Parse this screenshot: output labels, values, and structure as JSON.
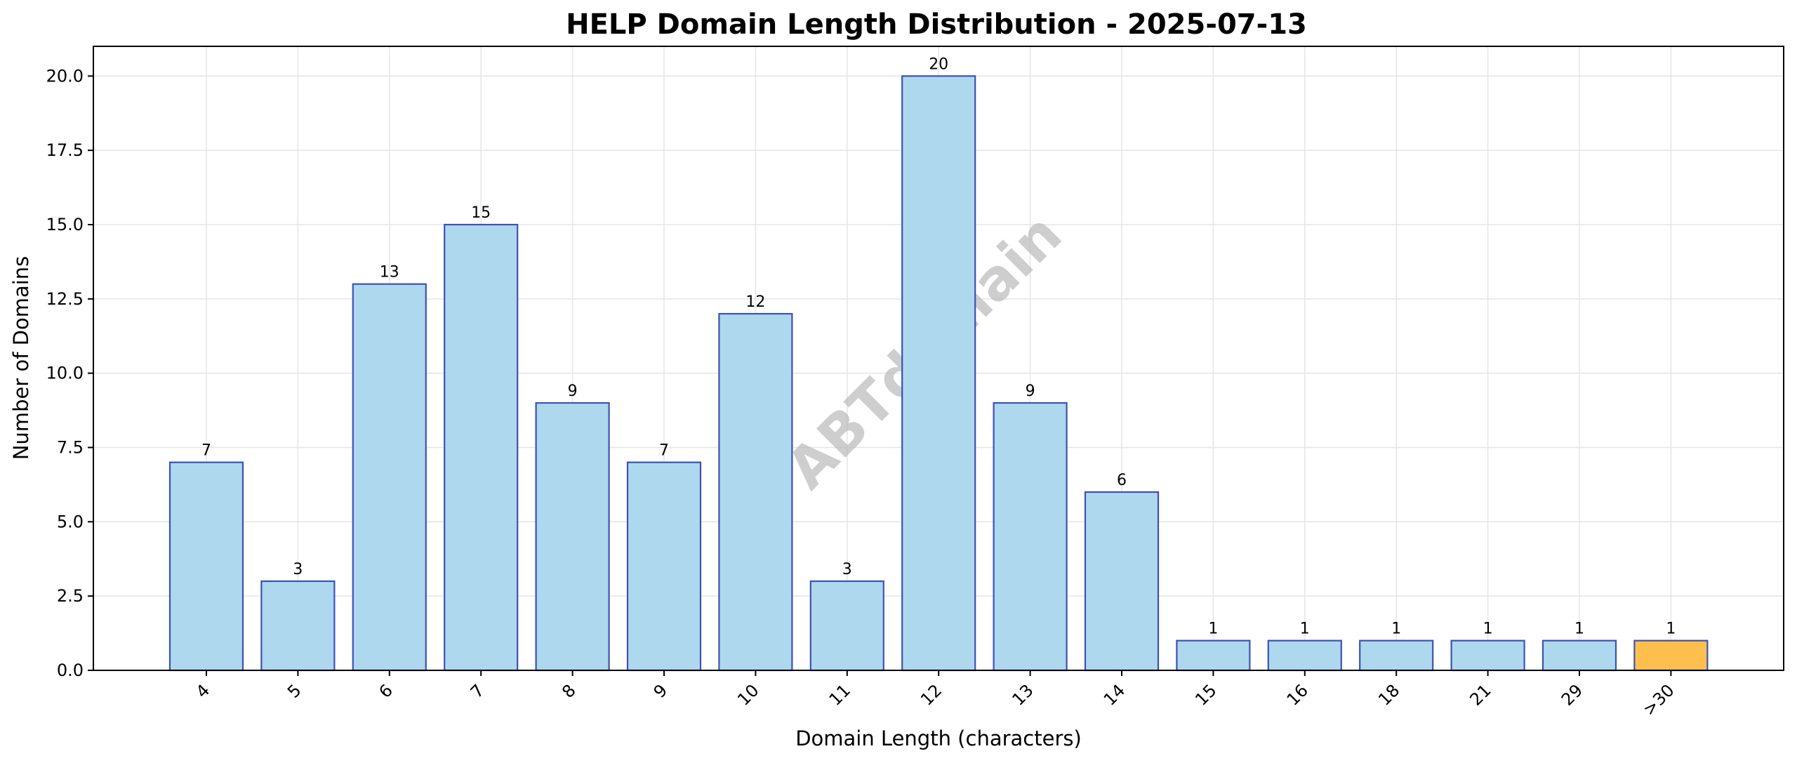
{
  "chart_data": {
    "type": "bar",
    "title": "HELP Domain Length Distribution - 2025-07-13",
    "xlabel": "Domain Length (characters)",
    "ylabel": "Number of Domains",
    "categories": [
      "4",
      "5",
      "6",
      "7",
      "8",
      "9",
      "10",
      "11",
      "12",
      "13",
      "14",
      "15",
      "16",
      "18",
      "21",
      "29",
      ">30"
    ],
    "values": [
      7,
      3,
      13,
      15,
      9,
      7,
      12,
      3,
      20,
      9,
      6,
      1,
      1,
      1,
      1,
      1,
      1
    ],
    "ylim": [
      0,
      21
    ],
    "yticks": [
      "0.0",
      "2.5",
      "5.0",
      "7.5",
      "10.0",
      "12.5",
      "15.0",
      "17.5",
      "20.0"
    ],
    "grid": true,
    "colors": {
      "bar_fill": "#add8ee",
      "bar_edge": "#3f51b5",
      "highlight_fill": "#ffbf4d",
      "highlight_category": ">30",
      "grid": "#e5e5e5"
    },
    "watermark": "ABTdomain"
  }
}
